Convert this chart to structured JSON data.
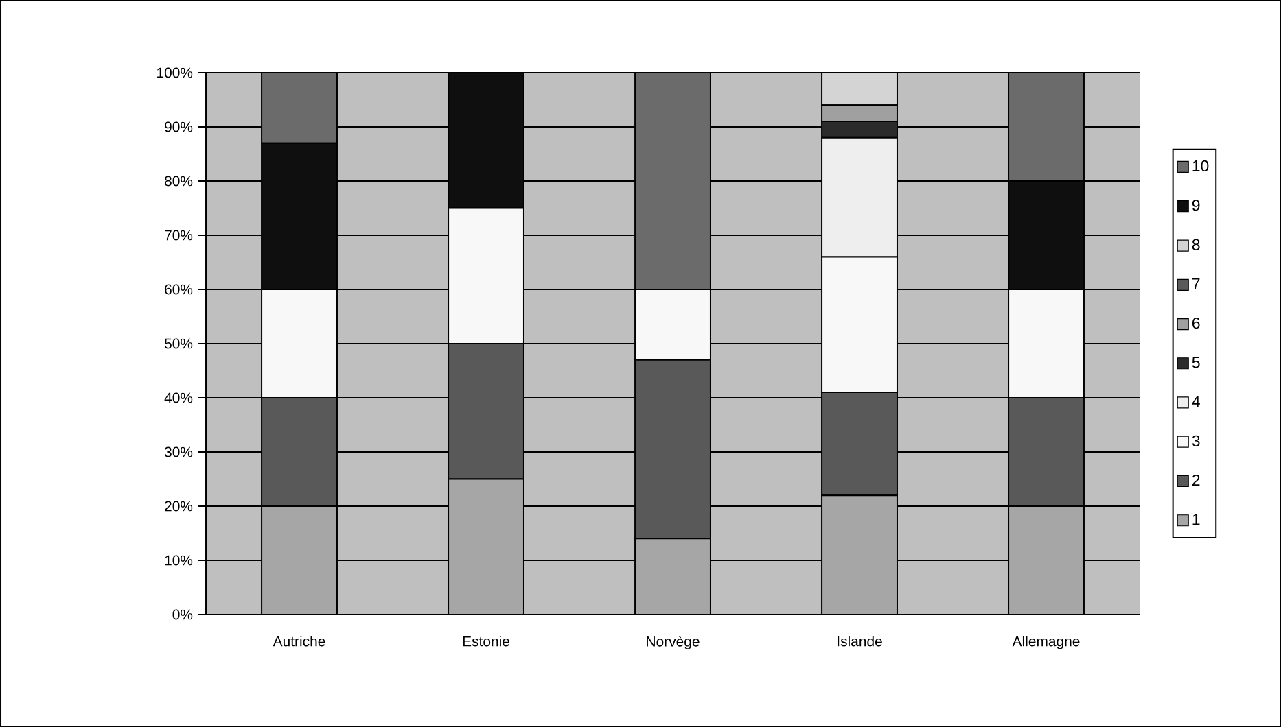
{
  "chart_data": {
    "type": "bar",
    "stacked": true,
    "categories": [
      "Autriche",
      "Estonie",
      "Norvège",
      "Islande",
      "Allemagne"
    ],
    "series": [
      {
        "name": "1",
        "color": "#a6a6a6",
        "values": [
          20,
          25,
          14,
          22,
          20
        ]
      },
      {
        "name": "2",
        "color": "#595959",
        "values": [
          20,
          25,
          33,
          19,
          20
        ]
      },
      {
        "name": "3",
        "color": "#f8f8f8",
        "values": [
          20,
          25,
          13,
          25,
          20
        ]
      },
      {
        "name": "4",
        "color": "#eeeeee",
        "values": [
          0,
          0,
          0,
          22,
          0
        ]
      },
      {
        "name": "5",
        "color": "#2b2b2b",
        "values": [
          0,
          0,
          0,
          3,
          0
        ]
      },
      {
        "name": "6",
        "color": "#a0a0a0",
        "values": [
          0,
          0,
          0,
          3,
          0
        ]
      },
      {
        "name": "7",
        "color": "#5a5a5a",
        "values": [
          0,
          0,
          0,
          0,
          0
        ]
      },
      {
        "name": "8",
        "color": "#d4d4d4",
        "values": [
          0,
          0,
          0,
          6,
          0
        ]
      },
      {
        "name": "9",
        "color": "#0f0f0f",
        "values": [
          27,
          25,
          0,
          0,
          20
        ]
      },
      {
        "name": "10",
        "color": "#6b6b6b",
        "values": [
          13,
          0,
          40,
          0,
          20
        ]
      }
    ],
    "ylim": [
      0,
      100
    ],
    "yticks": [
      {
        "value": 0,
        "label": "0%"
      },
      {
        "value": 10,
        "label": "10%"
      },
      {
        "value": 20,
        "label": "20%"
      },
      {
        "value": 30,
        "label": "30%"
      },
      {
        "value": 40,
        "label": "40%"
      },
      {
        "value": 50,
        "label": "50%"
      },
      {
        "value": 60,
        "label": "60%"
      },
      {
        "value": 70,
        "label": "70%"
      },
      {
        "value": 80,
        "label": "80%"
      },
      {
        "value": 90,
        "label": "90%"
      },
      {
        "value": 100,
        "label": "100%"
      }
    ],
    "grid": "y",
    "legend": "right"
  }
}
